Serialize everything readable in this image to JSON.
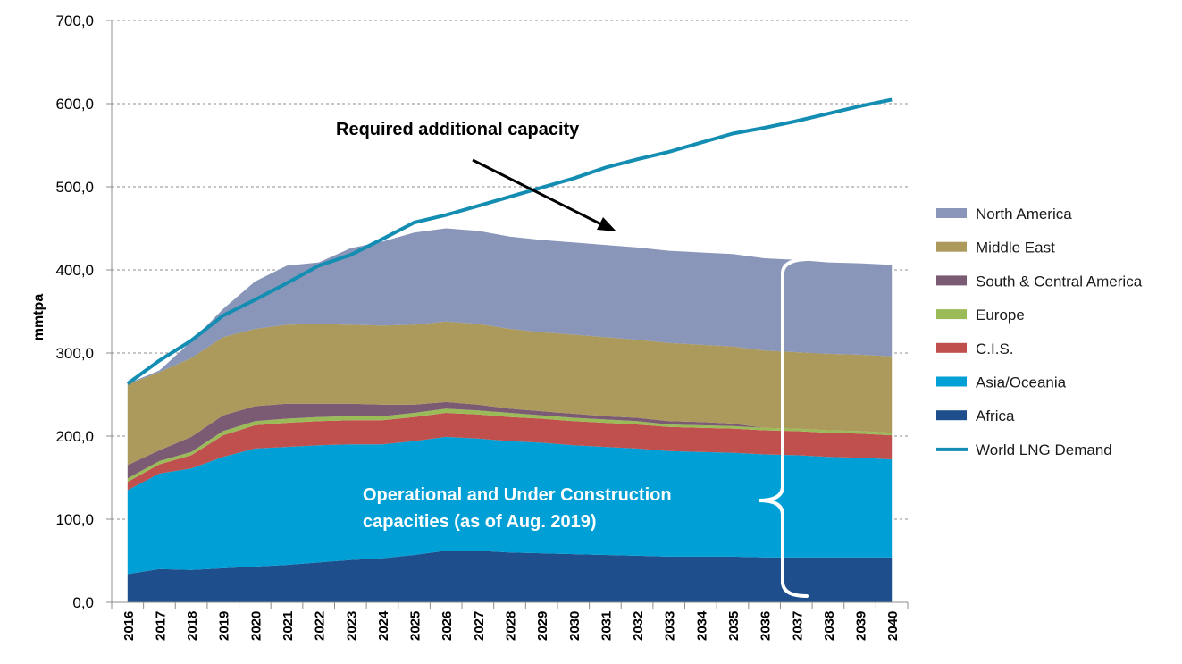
{
  "chart_data": {
    "type": "area",
    "title": "",
    "xlabel": "",
    "ylabel": "mmtpa",
    "ylim": [
      0,
      700
    ],
    "yticks": [
      "0,0",
      "100,0",
      "200,0",
      "300,0",
      "400,0",
      "500,0",
      "600,0",
      "700,0"
    ],
    "ytick_values": [
      0,
      100,
      200,
      300,
      400,
      500,
      600,
      700
    ],
    "grid": true,
    "legend_position": "right",
    "categories": [
      "2016",
      "2017",
      "2018",
      "2019",
      "2020",
      "2021",
      "2022",
      "2023",
      "2024",
      "2025",
      "2026",
      "2027",
      "2028",
      "2029",
      "2030",
      "2031",
      "2032",
      "2033",
      "2034",
      "2035",
      "2036",
      "2037",
      "2038",
      "2039",
      "2040"
    ],
    "stacked_series": [
      {
        "name": "Africa",
        "color": "#1f4e8c",
        "values": [
          34,
          40,
          39,
          41,
          43,
          45,
          48,
          51,
          53,
          57,
          62,
          62,
          60,
          59,
          58,
          57,
          56,
          55,
          55,
          55,
          54,
          54,
          54,
          54,
          54
        ]
      },
      {
        "name": "Asia/Oceania",
        "color": "#00a0d6",
        "values": [
          101,
          115,
          122,
          134,
          142,
          142,
          141,
          139,
          137,
          137,
          137,
          135,
          134,
          133,
          131,
          130,
          129,
          127,
          126,
          125,
          124,
          123,
          121,
          120,
          118
        ]
      },
      {
        "name": "C.I.S.",
        "color": "#c0504d",
        "values": [
          10,
          11,
          16,
          26,
          28,
          29,
          29,
          29,
          29,
          29,
          29,
          29,
          29,
          29,
          29,
          29,
          29,
          29,
          29,
          29,
          29,
          29,
          29,
          29,
          29
        ]
      },
      {
        "name": "Europe",
        "color": "#9bbb59",
        "values": [
          4,
          4,
          4,
          5,
          5,
          5,
          5,
          5,
          5,
          5,
          5,
          5,
          5,
          4,
          4,
          4,
          4,
          3,
          3,
          3,
          3,
          3,
          3,
          3,
          3
        ]
      },
      {
        "name": "South & Central America",
        "color": "#7b5b73",
        "values": [
          16,
          13,
          18,
          19,
          18,
          18,
          16,
          15,
          14,
          10,
          8,
          7,
          5,
          5,
          5,
          4,
          4,
          4,
          4,
          3,
          0,
          0,
          0,
          0,
          0
        ]
      },
      {
        "name": "Middle East",
        "color": "#ab9a5c",
        "values": [
          97,
          94,
          95,
          94,
          93,
          95,
          96,
          95,
          95,
          96,
          97,
          97,
          96,
          95,
          95,
          95,
          94,
          94,
          93,
          93,
          93,
          92,
          92,
          92,
          92
        ]
      },
      {
        "name": "North America",
        "color": "#8996b9",
        "values": [
          1,
          2,
          20,
          34,
          57,
          71,
          74,
          92,
          101,
          111,
          112,
          112,
          111,
          111,
          111,
          111,
          111,
          111,
          111,
          111,
          111,
          111,
          110,
          110,
          110
        ]
      }
    ],
    "line_series": {
      "name": "World LNG Demand",
      "color": "#138db2",
      "values": [
        263,
        291,
        315,
        345,
        364,
        384,
        405,
        418,
        437,
        457,
        466,
        477,
        488,
        499,
        510,
        523,
        533,
        542,
        553,
        564,
        571,
        579,
        588,
        597,
        605
      ]
    },
    "annotations": {
      "required": "Required additional capacity",
      "operational_line1": "Operational and Under Construction",
      "operational_line2": "capacities (as of Aug. 2019)"
    }
  }
}
